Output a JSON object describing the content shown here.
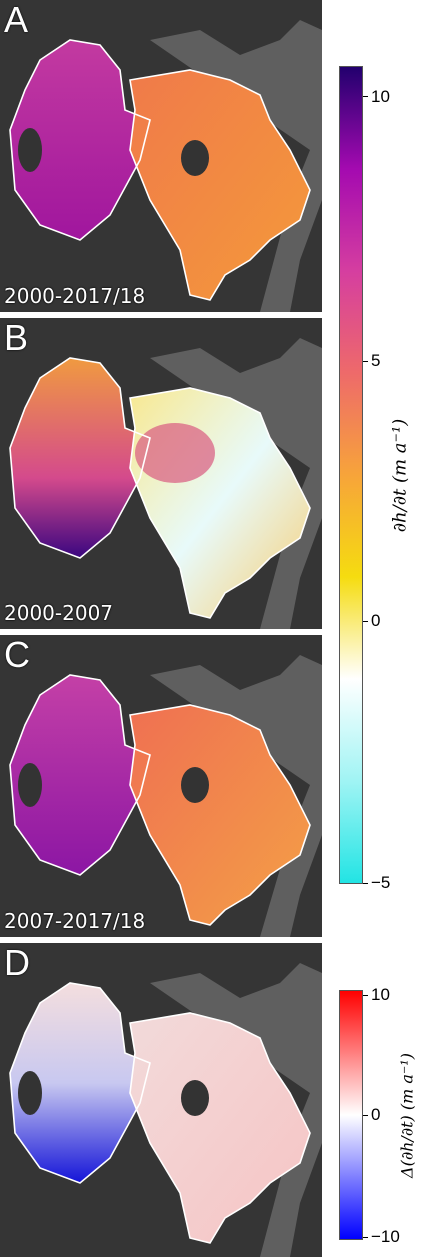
{
  "panels": [
    {
      "letter": "A",
      "period": "2000-2017/18",
      "scheme": "standard"
    },
    {
      "letter": "B",
      "period": "2000-2007",
      "scheme": "early"
    },
    {
      "letter": "C",
      "period": "2007-2017/18",
      "scheme": "late"
    },
    {
      "letter": "D",
      "period": "",
      "scheme": "diff"
    }
  ],
  "colorbar_main": {
    "ticks": [
      "10",
      "5",
      "0",
      "−5"
    ],
    "label": "∂h/∂t (m a⁻¹)",
    "colors": [
      "#22006e",
      "#a40ab0",
      "#d53ea0",
      "#ee6a6a",
      "#f7a43a",
      "#f5dc10",
      "#ffffff",
      "#a0f4f4",
      "#22e4e4"
    ]
  },
  "colorbar_diff": {
    "ticks": [
      "10",
      "0",
      "−10"
    ],
    "label": "Δ(∂h/∂t) (m a⁻¹)",
    "colors": [
      "#ff0000",
      "#ffffff",
      "#0000ff"
    ]
  }
}
